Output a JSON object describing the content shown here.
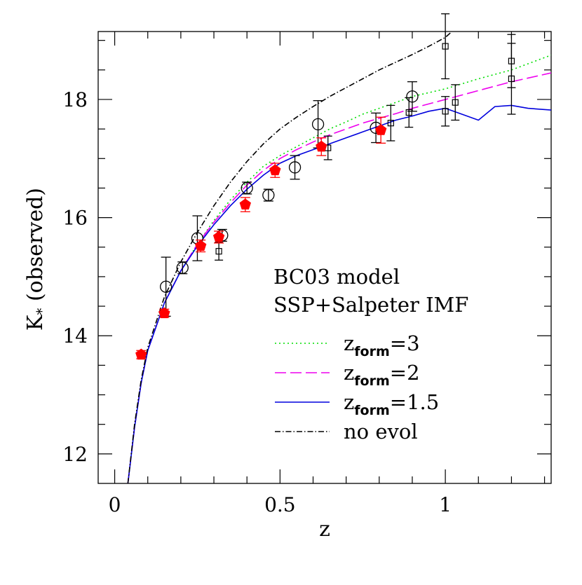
{
  "chart_data": {
    "type": "scatter",
    "xlabel": "z",
    "ylabel_main": "K",
    "ylabel_sub": "*",
    "ylabel_rest": " (observed)",
    "xlim": [
      -0.05,
      1.32
    ],
    "ylim": [
      11.5,
      19.15
    ],
    "x_ticks": [
      {
        "value": 0,
        "label": "0"
      },
      {
        "value": 0.5,
        "label": "0.5"
      },
      {
        "value": 1,
        "label": "1"
      }
    ],
    "y_ticks": [
      {
        "value": 12,
        "label": "12"
      },
      {
        "value": 14,
        "label": "14"
      },
      {
        "value": 16,
        "label": "16"
      },
      {
        "value": 18,
        "label": "18"
      }
    ],
    "annotation_lines": [
      "BC03 model",
      "SSP+Salpeter IMF"
    ],
    "legend": [
      {
        "base": "z",
        "sub": "form",
        "rest": "=3",
        "color": "#00dd00",
        "dash": "2,4"
      },
      {
        "base": "z",
        "sub": "form",
        "rest": "=2",
        "color": "#ee00ee",
        "dash": "16,6"
      },
      {
        "base": "z",
        "sub": "form",
        "rest": "=1.5",
        "color": "#0000dd",
        "dash": ""
      },
      {
        "base": "",
        "sub": "",
        "rest": "no evol",
        "color": "#000000",
        "dash": "8,3,1.5,3"
      }
    ],
    "series": [
      {
        "name": "zform=3",
        "color": "#00dd00",
        "dash": "2,4",
        "x": [
          0.04,
          0.06,
          0.08,
          0.1,
          0.15,
          0.2,
          0.25,
          0.3,
          0.35,
          0.4,
          0.45,
          0.5,
          0.55,
          0.6,
          0.65,
          0.7,
          0.75,
          0.8,
          0.85,
          0.9,
          1.0,
          1.1,
          1.2,
          1.32
        ],
        "y": [
          11.5,
          12.45,
          13.2,
          13.75,
          14.55,
          15.1,
          15.55,
          15.95,
          16.3,
          16.6,
          16.87,
          17.05,
          17.2,
          17.35,
          17.5,
          17.62,
          17.75,
          17.85,
          17.95,
          18.05,
          18.18,
          18.35,
          18.5,
          18.75
        ]
      },
      {
        "name": "zform=2",
        "color": "#ee00ee",
        "dash": "16,6",
        "x": [
          0.04,
          0.06,
          0.08,
          0.1,
          0.15,
          0.2,
          0.25,
          0.3,
          0.35,
          0.4,
          0.45,
          0.5,
          0.55,
          0.6,
          0.65,
          0.7,
          0.75,
          0.8,
          0.85,
          0.9,
          1.0,
          1.1,
          1.2,
          1.32
        ],
        "y": [
          11.5,
          12.45,
          13.2,
          13.75,
          14.55,
          15.1,
          15.55,
          15.92,
          16.25,
          16.55,
          16.8,
          17.0,
          17.15,
          17.28,
          17.4,
          17.5,
          17.6,
          17.68,
          17.76,
          17.85,
          18.0,
          18.15,
          18.3,
          18.45
        ]
      },
      {
        "name": "zform=1.5",
        "color": "#0000dd",
        "dash": "",
        "x": [
          0.04,
          0.06,
          0.08,
          0.1,
          0.15,
          0.2,
          0.25,
          0.3,
          0.35,
          0.4,
          0.45,
          0.5,
          0.55,
          0.6,
          0.65,
          0.7,
          0.75,
          0.8,
          0.85,
          0.9,
          0.95,
          1.0,
          1.05,
          1.1,
          1.15,
          1.2,
          1.25,
          1.32
        ],
        "y": [
          11.5,
          12.45,
          13.2,
          13.75,
          14.55,
          15.1,
          15.52,
          15.88,
          16.2,
          16.48,
          16.72,
          16.92,
          17.05,
          17.15,
          17.25,
          17.35,
          17.45,
          17.55,
          17.65,
          17.72,
          17.8,
          17.85,
          17.75,
          17.65,
          17.88,
          17.9,
          17.85,
          17.82
        ]
      },
      {
        "name": "no evol",
        "color": "#000000",
        "dash": "8,3,1.5,3",
        "x": [
          0.04,
          0.06,
          0.08,
          0.1,
          0.15,
          0.2,
          0.25,
          0.3,
          0.35,
          0.4,
          0.45,
          0.5,
          0.55,
          0.6,
          0.65,
          0.7,
          0.75,
          0.8,
          0.85,
          0.9,
          0.95,
          1.0,
          1.02
        ],
        "y": [
          11.5,
          12.5,
          13.25,
          13.8,
          14.65,
          15.25,
          15.75,
          16.2,
          16.6,
          16.95,
          17.25,
          17.5,
          17.7,
          17.88,
          18.05,
          18.2,
          18.35,
          18.5,
          18.63,
          18.76,
          18.9,
          19.05,
          19.15
        ]
      }
    ],
    "points": {
      "pentagons": {
        "color": "#ff0000",
        "x": [
          0.08,
          0.15,
          0.26,
          0.315,
          0.395,
          0.485,
          0.625,
          0.805
        ],
        "y": [
          13.68,
          14.38,
          15.52,
          15.67,
          16.22,
          16.8,
          17.2,
          17.48
        ],
        "err": [
          0.07,
          0.07,
          0.1,
          0.1,
          0.12,
          0.12,
          0.15,
          0.22
        ]
      },
      "circles": {
        "x": [
          0.155,
          0.205,
          0.25,
          0.325,
          0.4,
          0.465,
          0.545,
          0.615,
          0.79,
          0.9
        ],
        "y": [
          14.83,
          15.15,
          15.65,
          15.7,
          16.5,
          16.38,
          16.85,
          17.58,
          17.52,
          18.05
        ],
        "err": [
          0.5,
          0.1,
          0.38,
          0.1,
          0.1,
          0.1,
          0.2,
          0.4,
          0.25,
          0.25
        ]
      },
      "squares": {
        "x": [
          0.315,
          0.645,
          0.835,
          0.89,
          1.0,
          1.0,
          1.03,
          1.2,
          1.2
        ],
        "y": [
          15.43,
          17.18,
          17.6,
          17.78,
          17.8,
          18.9,
          17.95,
          18.65,
          18.35
        ],
        "err": [
          0.15,
          0.2,
          0.3,
          0.25,
          0.25,
          0.55,
          0.3,
          0.45,
          0.6
        ]
      }
    }
  }
}
